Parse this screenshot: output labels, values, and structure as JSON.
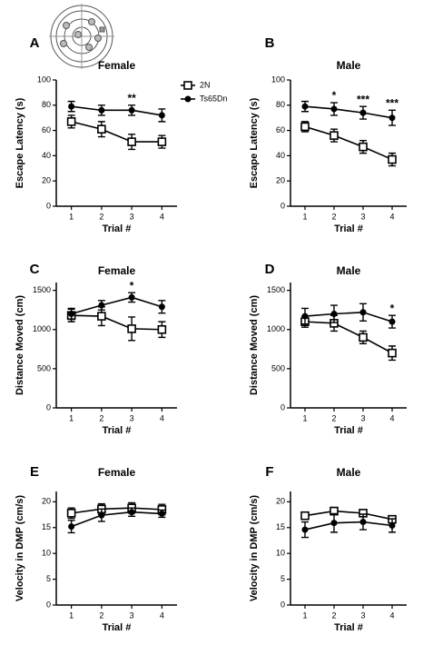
{
  "chart_data": [
    {
      "type": "line",
      "panel": "A",
      "title": "Female",
      "x_label": "Trial #",
      "y_label": "Escape Latency (s)",
      "x": [
        1,
        2,
        3,
        4
      ],
      "xlim": [
        0.5,
        4.5
      ],
      "ylim": [
        0,
        100
      ],
      "yticks": [
        0,
        20,
        40,
        60,
        80,
        100
      ],
      "legend": "right",
      "series": [
        {
          "name": "2N",
          "color": "#000000",
          "marker": "square-open",
          "values": [
            67,
            61,
            51,
            51
          ],
          "errors": [
            5,
            6,
            6,
            5
          ]
        },
        {
          "name": "Ts65Dn",
          "color": "#000000",
          "marker": "circle",
          "values": [
            79,
            76,
            76,
            72
          ],
          "errors": [
            4,
            4,
            4,
            5
          ]
        }
      ],
      "annotations": [
        {
          "x": 3,
          "text": "**"
        }
      ]
    },
    {
      "type": "line",
      "panel": "B",
      "title": "Male",
      "x_label": "Trial #",
      "y_label": "Escape Latency (s)",
      "x": [
        1,
        2,
        3,
        4
      ],
      "xlim": [
        0.5,
        4.5
      ],
      "ylim": [
        0,
        100
      ],
      "yticks": [
        0,
        20,
        40,
        60,
        80,
        100
      ],
      "series": [
        {
          "name": "2N",
          "color": "#000000",
          "marker": "square-open",
          "values": [
            63,
            56,
            47,
            37
          ],
          "errors": [
            4,
            5,
            5,
            5
          ]
        },
        {
          "name": "Ts65Dn",
          "color": "#000000",
          "marker": "circle",
          "values": [
            79,
            77,
            74,
            70
          ],
          "errors": [
            4,
            5,
            5,
            6
          ]
        }
      ],
      "annotations": [
        {
          "x": 2,
          "text": "*"
        },
        {
          "x": 3,
          "text": "***"
        },
        {
          "x": 4,
          "text": "***"
        }
      ]
    },
    {
      "type": "line",
      "panel": "C",
      "title": "Female",
      "x_label": "Trial #",
      "y_label": "Distance Moved (cm)",
      "x": [
        1,
        2,
        3,
        4
      ],
      "xlim": [
        0.5,
        4.5
      ],
      "ylim": [
        0,
        1600
      ],
      "yticks": [
        0,
        500,
        1000,
        1500
      ],
      "series": [
        {
          "name": "2N",
          "color": "#000000",
          "marker": "square-open",
          "values": [
            1180,
            1170,
            1010,
            1000
          ],
          "errors": [
            80,
            120,
            150,
            100
          ]
        },
        {
          "name": "Ts65Dn",
          "color": "#000000",
          "marker": "circle",
          "values": [
            1200,
            1310,
            1410,
            1290
          ],
          "errors": [
            70,
            60,
            60,
            80
          ]
        }
      ],
      "annotations": [
        {
          "x": 3,
          "text": "*"
        }
      ]
    },
    {
      "type": "line",
      "panel": "D",
      "title": "Male",
      "x_label": "Trial #",
      "y_label": "Distance Moved (cm)",
      "x": [
        1,
        2,
        3,
        4
      ],
      "xlim": [
        0.5,
        4.5
      ],
      "ylim": [
        0,
        1600
      ],
      "yticks": [
        0,
        500,
        1000,
        1500
      ],
      "series": [
        {
          "name": "2N",
          "color": "#000000",
          "marker": "square-open",
          "values": [
            1100,
            1080,
            900,
            700
          ],
          "errors": [
            70,
            100,
            80,
            90
          ]
        },
        {
          "name": "Ts65Dn",
          "color": "#000000",
          "marker": "circle",
          "values": [
            1170,
            1200,
            1220,
            1100
          ],
          "errors": [
            100,
            110,
            110,
            80
          ]
        }
      ],
      "annotations": [
        {
          "x": 4,
          "text": "*"
        }
      ]
    },
    {
      "type": "line",
      "panel": "E",
      "title": "Female",
      "x_label": "Trial #",
      "y_label": "Velocity in DMP (cm/s)",
      "x": [
        1,
        2,
        3,
        4
      ],
      "xlim": [
        0.5,
        4.5
      ],
      "ylim": [
        0,
        22
      ],
      "yticks": [
        0,
        5,
        10,
        15,
        20
      ],
      "series": [
        {
          "name": "2N",
          "color": "#000000",
          "marker": "square-open",
          "values": [
            17.8,
            18.6,
            18.8,
            18.5
          ],
          "errors": [
            1,
            1,
            1,
            1
          ]
        },
        {
          "name": "Ts65Dn",
          "color": "#000000",
          "marker": "circle",
          "values": [
            15.2,
            17.4,
            18,
            17.7
          ],
          "errors": [
            1.2,
            1.2,
            0.8,
            0.7
          ]
        }
      ]
    },
    {
      "type": "line",
      "panel": "F",
      "title": "Male",
      "x_label": "Trial #",
      "y_label": "Velocity in DMP (cm/s)",
      "x": [
        1,
        2,
        3,
        4
      ],
      "xlim": [
        0.5,
        4.5
      ],
      "ylim": [
        0,
        22
      ],
      "yticks": [
        0,
        5,
        10,
        15,
        20
      ],
      "series": [
        {
          "name": "2N",
          "color": "#000000",
          "marker": "square-open",
          "values": [
            17.3,
            18.2,
            17.8,
            16.6
          ],
          "errors": [
            0.7,
            0.7,
            0.5,
            0.6
          ]
        },
        {
          "name": "Ts65Dn",
          "color": "#000000",
          "marker": "circle",
          "values": [
            14.6,
            15.9,
            16.1,
            15.4
          ],
          "errors": [
            1.5,
            1.8,
            1.5,
            1.3
          ]
        }
      ]
    }
  ]
}
